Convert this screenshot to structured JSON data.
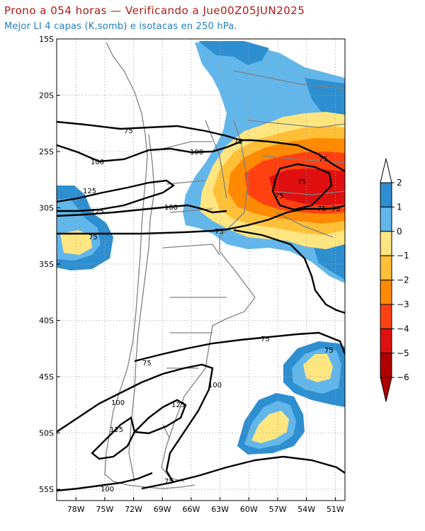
{
  "header": {
    "title": "Prono a 054 horas — Verificando a Jue00Z05JUN2025",
    "subtitle": "Mejor LI 4 capas (K,somb) e isotacas en 250 hPa."
  },
  "map": {
    "extent": {
      "lon": [
        -80,
        -50
      ],
      "lat": [
        -56,
        -15
      ]
    },
    "lat_ticks": [
      {
        "value": -15,
        "label": "15S"
      },
      {
        "value": -20,
        "label": "20S"
      },
      {
        "value": -25,
        "label": "25S"
      },
      {
        "value": -30,
        "label": "30S"
      },
      {
        "value": -35,
        "label": "35S"
      },
      {
        "value": -40,
        "label": "40S"
      },
      {
        "value": -45,
        "label": "45S"
      },
      {
        "value": -50,
        "label": "50S"
      },
      {
        "value": -55,
        "label": "55S"
      }
    ],
    "lon_ticks": [
      {
        "value": -78,
        "label": "78W"
      },
      {
        "value": -75,
        "label": "75W"
      },
      {
        "value": -72,
        "label": "72W"
      },
      {
        "value": -69,
        "label": "69W"
      },
      {
        "value": -66,
        "label": "66W"
      },
      {
        "value": -63,
        "label": "63W"
      },
      {
        "value": -60,
        "label": "60W"
      },
      {
        "value": -57,
        "label": "57W"
      },
      {
        "value": -54,
        "label": "54W"
      },
      {
        "value": -51,
        "label": "51W"
      }
    ],
    "contour_labels": [
      "75",
      "100",
      "125"
    ],
    "colors": {
      "li_gt_1": "#2e8fd0",
      "li_0_1": "#62b6ea",
      "li_m1_0": "#ffe680",
      "li_m2_m1": "#ffc038",
      "li_m3_m2": "#ff8a00",
      "li_m4_m3": "#ff4010",
      "li_m5_m4": "#e01010",
      "li_lt_m5": "#b00000",
      "coast": "#808080",
      "isotach": "#000000",
      "grid": "#a0a0a0"
    }
  },
  "colorbar": {
    "labels": [
      "2",
      "1",
      "0",
      "−1",
      "−2",
      "−3",
      "−4",
      "−5",
      "−6"
    ],
    "colors": [
      "#2e8fd0",
      "#62b6ea",
      "#ffe680",
      "#ffc038",
      "#ff8a00",
      "#ff4010",
      "#e01010",
      "#b00000"
    ],
    "top_arrow_color": "#ffffff",
    "bottom_arrow_color": "#b00000"
  }
}
